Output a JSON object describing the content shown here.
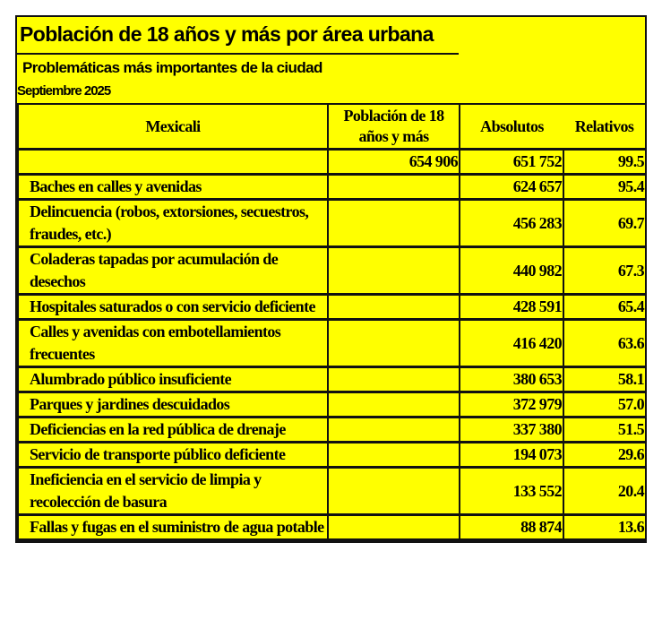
{
  "title": "Población de 18 años y más por área urbana",
  "subtitle": "Problemáticas más importantes de la ciudad",
  "date": "Septiembre 2025",
  "headers": {
    "area": "Mexicali",
    "population": "Población de 18 años y más",
    "absolute": "Absolutos",
    "relative": "Relativos"
  },
  "total": {
    "label": "",
    "population": "654 906",
    "absolute": "651 752",
    "relative": "99.5"
  },
  "rows": [
    {
      "label": "Baches en calles y avenidas",
      "absolute": "624 657",
      "relative": "95.4"
    },
    {
      "label": "Delincuencia (robos, extorsiones, secuestros, fraudes, etc.)",
      "absolute": "456 283",
      "relative": "69.7"
    },
    {
      "label": "Coladeras tapadas por acumulación de desechos",
      "absolute": "440 982",
      "relative": "67.3"
    },
    {
      "label": "Hospitales saturados o con servicio deficiente",
      "absolute": "428 591",
      "relative": "65.4"
    },
    {
      "label": "Calles y avenidas con embotellamientos frecuentes",
      "absolute": "416 420",
      "relative": "63.6"
    },
    {
      "label": "Alumbrado público insuficiente",
      "absolute": "380 653",
      "relative": "58.1"
    },
    {
      "label": "Parques y jardines descuidados",
      "absolute": "372 979",
      "relative": "57.0"
    },
    {
      "label": "Deficiencias en la red pública de drenaje",
      "absolute": "337 380",
      "relative": "51.5"
    },
    {
      "label": "Servicio de transporte público deficiente",
      "absolute": "194 073",
      "relative": "29.6"
    },
    {
      "label": "Ineficiencia en el servicio de limpia y recolección de basura",
      "absolute": "133 552",
      "relative": "20.4"
    },
    {
      "label": "Fallas y fugas en el suministro de agua potable",
      "absolute": "88 874",
      "relative": "13.6"
    }
  ],
  "colors": {
    "background": "#ffff00",
    "border": "#111111"
  }
}
